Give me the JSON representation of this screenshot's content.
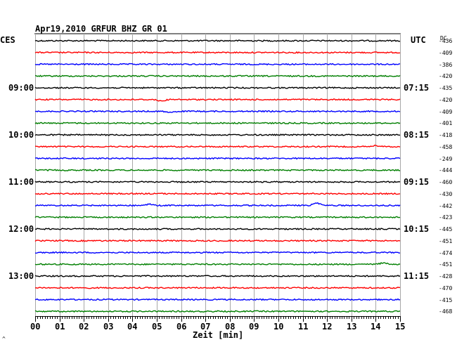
{
  "header": {
    "title": "Apr19,2010   GRFUR BHZ GR 01",
    "left_unit": "CES",
    "right_unit": "UTC",
    "dc_label": "DC",
    "corner_mark": "^"
  },
  "chart_data": {
    "type": "line",
    "title": "Apr19,2010   GRFUR BHZ GR 01",
    "xlabel": "Zeit [min]",
    "ylabel": "",
    "xlim": [
      0,
      15
    ],
    "x_ticks": [
      "00",
      "01",
      "02",
      "03",
      "04",
      "05",
      "06",
      "07",
      "08",
      "09",
      "10",
      "11",
      "12",
      "13",
      "14",
      "15"
    ],
    "grid": true,
    "trace_colors": [
      "#000000",
      "#ff0000",
      "#0000ff",
      "#007f00"
    ],
    "left_time_labels": [
      {
        "trace": 4,
        "label": "09:00"
      },
      {
        "trace": 8,
        "label": "10:00"
      },
      {
        "trace": 12,
        "label": "11:00"
      },
      {
        "trace": 16,
        "label": "12:00"
      },
      {
        "trace": 20,
        "label": "13:00"
      }
    ],
    "right_time_labels": [
      {
        "trace": 4,
        "label": "07:15"
      },
      {
        "trace": 8,
        "label": "08:15"
      },
      {
        "trace": 12,
        "label": "09:15"
      },
      {
        "trace": 16,
        "label": "10:15"
      },
      {
        "trace": 20,
        "label": "11:15"
      }
    ],
    "dc_offsets": [
      "-436",
      "-409",
      "-386",
      "-420",
      "-435",
      "-420",
      "-409",
      "-401",
      "-418",
      "-458",
      "-249",
      "-444",
      "-460",
      "-430",
      "-442",
      "-423",
      "-445",
      "-451",
      "-474",
      "-451",
      "-428",
      "-470",
      "-415",
      "-468"
    ],
    "events": [
      {
        "trace": 5,
        "x_min": 5.2,
        "amplitude": 2
      },
      {
        "trace": 6,
        "x_min": 5.6,
        "amplitude": 2
      },
      {
        "trace": 9,
        "x_min": 14.0,
        "amplitude": -2
      },
      {
        "trace": 14,
        "x_min": 4.7,
        "amplitude": -2
      },
      {
        "trace": 14,
        "x_min": 11.6,
        "amplitude": -4
      },
      {
        "trace": 19,
        "x_min": 14.3,
        "amplitude": -2
      }
    ]
  }
}
